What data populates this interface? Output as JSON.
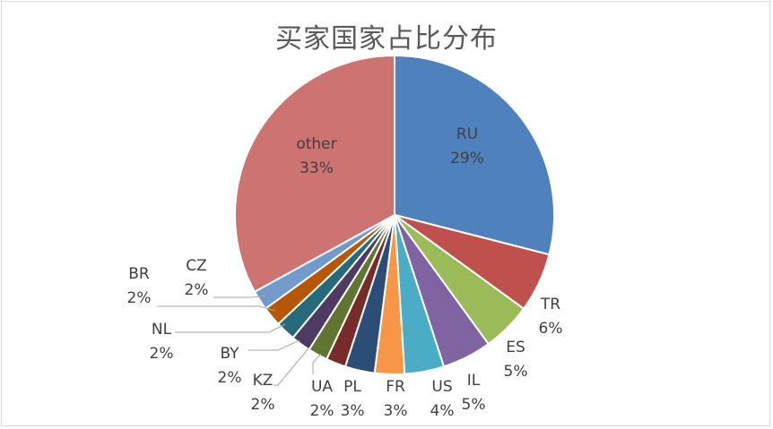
{
  "chart_data": {
    "type": "pie",
    "title": "买家国家占比分布",
    "slices": [
      {
        "label": "RU",
        "value": 29,
        "value_label": "29%",
        "color": "#4f81bd"
      },
      {
        "label": "TR",
        "value": 6,
        "value_label": "6%",
        "color": "#c0504d"
      },
      {
        "label": "ES",
        "value": 5,
        "value_label": "5%",
        "color": "#9bbb59"
      },
      {
        "label": "IL",
        "value": 5,
        "value_label": "5%",
        "color": "#8064a2"
      },
      {
        "label": "US",
        "value": 4,
        "value_label": "4%",
        "color": "#4bacc6"
      },
      {
        "label": "FR",
        "value": 3,
        "value_label": "3%",
        "color": "#f79646"
      },
      {
        "label": "PL",
        "value": 3,
        "value_label": "3%",
        "color": "#2c4d75"
      },
      {
        "label": "UA",
        "value": 2,
        "value_label": "2%",
        "color": "#772c2a"
      },
      {
        "label": "KZ",
        "value": 2,
        "value_label": "2%",
        "color": "#5f7530"
      },
      {
        "label": "BY",
        "value": 2,
        "value_label": "2%",
        "color": "#4d3b62"
      },
      {
        "label": "NL",
        "value": 2,
        "value_label": "2%",
        "color": "#276a7c"
      },
      {
        "label": "BR",
        "value": 2,
        "value_label": "2%",
        "color": "#b65708"
      },
      {
        "label": "CZ",
        "value": 2,
        "value_label": "2%",
        "color": "#729aca"
      },
      {
        "label": "other",
        "value": 33,
        "value_label": "33%",
        "color": "#cd7371"
      }
    ]
  }
}
